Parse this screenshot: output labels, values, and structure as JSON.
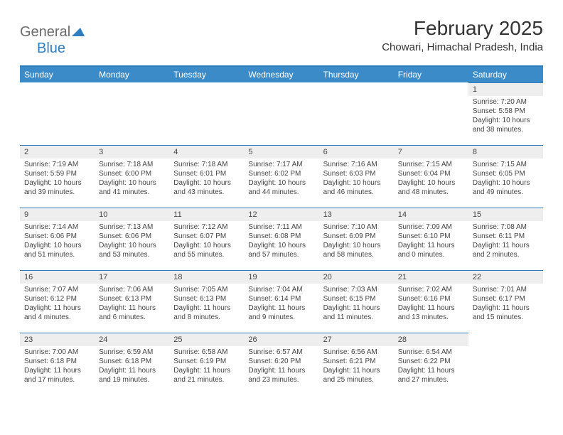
{
  "logo": {
    "text_gray": "General",
    "text_blue": "Blue"
  },
  "header": {
    "month_title": "February 2025",
    "location": "Chowari, Himachal Pradesh, India"
  },
  "colors": {
    "header_bg": "#3b8bc8",
    "accent_line": "#2f7ec0",
    "daynum_bg": "#eeeeee",
    "text": "#333333",
    "logo_gray": "#6b6b6b",
    "logo_blue": "#2f7ec0",
    "page_bg": "#ffffff"
  },
  "typography": {
    "title_fontsize": 28,
    "location_fontsize": 15,
    "dayhead_fontsize": 12,
    "cell_fontsize": 10
  },
  "calendar": {
    "type": "table",
    "day_headers": [
      "Sunday",
      "Monday",
      "Tuesday",
      "Wednesday",
      "Thursday",
      "Friday",
      "Saturday"
    ],
    "weeks": [
      [
        null,
        null,
        null,
        null,
        null,
        null,
        {
          "n": "1",
          "sunrise": "Sunrise: 7:20 AM",
          "sunset": "Sunset: 5:58 PM",
          "daylight": "Daylight: 10 hours and 38 minutes."
        }
      ],
      [
        {
          "n": "2",
          "sunrise": "Sunrise: 7:19 AM",
          "sunset": "Sunset: 5:59 PM",
          "daylight": "Daylight: 10 hours and 39 minutes."
        },
        {
          "n": "3",
          "sunrise": "Sunrise: 7:18 AM",
          "sunset": "Sunset: 6:00 PM",
          "daylight": "Daylight: 10 hours and 41 minutes."
        },
        {
          "n": "4",
          "sunrise": "Sunrise: 7:18 AM",
          "sunset": "Sunset: 6:01 PM",
          "daylight": "Daylight: 10 hours and 43 minutes."
        },
        {
          "n": "5",
          "sunrise": "Sunrise: 7:17 AM",
          "sunset": "Sunset: 6:02 PM",
          "daylight": "Daylight: 10 hours and 44 minutes."
        },
        {
          "n": "6",
          "sunrise": "Sunrise: 7:16 AM",
          "sunset": "Sunset: 6:03 PM",
          "daylight": "Daylight: 10 hours and 46 minutes."
        },
        {
          "n": "7",
          "sunrise": "Sunrise: 7:15 AM",
          "sunset": "Sunset: 6:04 PM",
          "daylight": "Daylight: 10 hours and 48 minutes."
        },
        {
          "n": "8",
          "sunrise": "Sunrise: 7:15 AM",
          "sunset": "Sunset: 6:05 PM",
          "daylight": "Daylight: 10 hours and 49 minutes."
        }
      ],
      [
        {
          "n": "9",
          "sunrise": "Sunrise: 7:14 AM",
          "sunset": "Sunset: 6:06 PM",
          "daylight": "Daylight: 10 hours and 51 minutes."
        },
        {
          "n": "10",
          "sunrise": "Sunrise: 7:13 AM",
          "sunset": "Sunset: 6:06 PM",
          "daylight": "Daylight: 10 hours and 53 minutes."
        },
        {
          "n": "11",
          "sunrise": "Sunrise: 7:12 AM",
          "sunset": "Sunset: 6:07 PM",
          "daylight": "Daylight: 10 hours and 55 minutes."
        },
        {
          "n": "12",
          "sunrise": "Sunrise: 7:11 AM",
          "sunset": "Sunset: 6:08 PM",
          "daylight": "Daylight: 10 hours and 57 minutes."
        },
        {
          "n": "13",
          "sunrise": "Sunrise: 7:10 AM",
          "sunset": "Sunset: 6:09 PM",
          "daylight": "Daylight: 10 hours and 58 minutes."
        },
        {
          "n": "14",
          "sunrise": "Sunrise: 7:09 AM",
          "sunset": "Sunset: 6:10 PM",
          "daylight": "Daylight: 11 hours and 0 minutes."
        },
        {
          "n": "15",
          "sunrise": "Sunrise: 7:08 AM",
          "sunset": "Sunset: 6:11 PM",
          "daylight": "Daylight: 11 hours and 2 minutes."
        }
      ],
      [
        {
          "n": "16",
          "sunrise": "Sunrise: 7:07 AM",
          "sunset": "Sunset: 6:12 PM",
          "daylight": "Daylight: 11 hours and 4 minutes."
        },
        {
          "n": "17",
          "sunrise": "Sunrise: 7:06 AM",
          "sunset": "Sunset: 6:13 PM",
          "daylight": "Daylight: 11 hours and 6 minutes."
        },
        {
          "n": "18",
          "sunrise": "Sunrise: 7:05 AM",
          "sunset": "Sunset: 6:13 PM",
          "daylight": "Daylight: 11 hours and 8 minutes."
        },
        {
          "n": "19",
          "sunrise": "Sunrise: 7:04 AM",
          "sunset": "Sunset: 6:14 PM",
          "daylight": "Daylight: 11 hours and 9 minutes."
        },
        {
          "n": "20",
          "sunrise": "Sunrise: 7:03 AM",
          "sunset": "Sunset: 6:15 PM",
          "daylight": "Daylight: 11 hours and 11 minutes."
        },
        {
          "n": "21",
          "sunrise": "Sunrise: 7:02 AM",
          "sunset": "Sunset: 6:16 PM",
          "daylight": "Daylight: 11 hours and 13 minutes."
        },
        {
          "n": "22",
          "sunrise": "Sunrise: 7:01 AM",
          "sunset": "Sunset: 6:17 PM",
          "daylight": "Daylight: 11 hours and 15 minutes."
        }
      ],
      [
        {
          "n": "23",
          "sunrise": "Sunrise: 7:00 AM",
          "sunset": "Sunset: 6:18 PM",
          "daylight": "Daylight: 11 hours and 17 minutes."
        },
        {
          "n": "24",
          "sunrise": "Sunrise: 6:59 AM",
          "sunset": "Sunset: 6:18 PM",
          "daylight": "Daylight: 11 hours and 19 minutes."
        },
        {
          "n": "25",
          "sunrise": "Sunrise: 6:58 AM",
          "sunset": "Sunset: 6:19 PM",
          "daylight": "Daylight: 11 hours and 21 minutes."
        },
        {
          "n": "26",
          "sunrise": "Sunrise: 6:57 AM",
          "sunset": "Sunset: 6:20 PM",
          "daylight": "Daylight: 11 hours and 23 minutes."
        },
        {
          "n": "27",
          "sunrise": "Sunrise: 6:56 AM",
          "sunset": "Sunset: 6:21 PM",
          "daylight": "Daylight: 11 hours and 25 minutes."
        },
        {
          "n": "28",
          "sunrise": "Sunrise: 6:54 AM",
          "sunset": "Sunset: 6:22 PM",
          "daylight": "Daylight: 11 hours and 27 minutes."
        },
        null
      ]
    ]
  }
}
